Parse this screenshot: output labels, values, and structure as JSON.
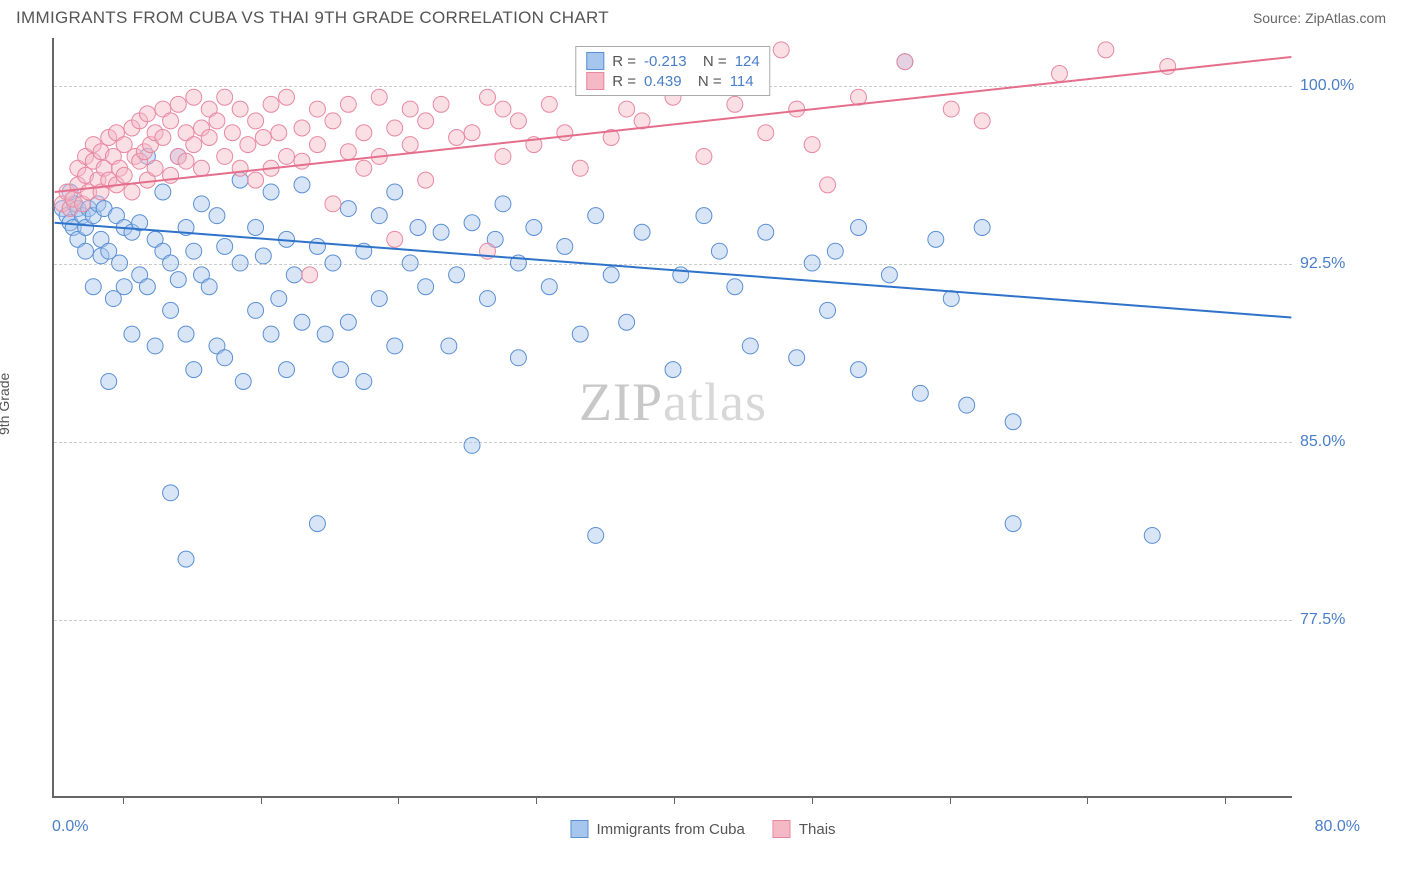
{
  "header": {
    "title": "IMMIGRANTS FROM CUBA VS THAI 9TH GRADE CORRELATION CHART",
    "source": "Source: ZipAtlas.com"
  },
  "chart": {
    "type": "scatter",
    "ylabel": "9th Grade",
    "xlim": [
      0,
      80
    ],
    "ylim": [
      70,
      102
    ],
    "x_axis_min_label": "0.0%",
    "x_axis_max_label": "80.0%",
    "y_ticks": [
      {
        "value": 100.0,
        "label": "100.0%"
      },
      {
        "value": 92.5,
        "label": "92.5%"
      },
      {
        "value": 85.0,
        "label": "85.0%"
      },
      {
        "value": 77.5,
        "label": "77.5%"
      }
    ],
    "x_ticks_count": 9,
    "background_color": "#ffffff",
    "grid_color": "#cccccc",
    "axis_color": "#666666",
    "tick_label_color": "#4a7ec9",
    "marker_radius": 8,
    "marker_opacity": 0.45,
    "line_width": 2,
    "series": [
      {
        "name": "Immigrants from Cuba",
        "fill_color": "#a6c6ed",
        "stroke_color": "#5b8fd4",
        "line_color": "#2e72c9",
        "R": "-0.213",
        "N": "124",
        "trend": {
          "x1": 0,
          "y1": 94.2,
          "x2": 80,
          "y2": 90.2
        },
        "points": [
          [
            0.5,
            94.8
          ],
          [
            0.8,
            94.5
          ],
          [
            1.0,
            94.2
          ],
          [
            1.0,
            95.5
          ],
          [
            1.2,
            94.0
          ],
          [
            1.3,
            95.0
          ],
          [
            1.5,
            94.8
          ],
          [
            1.5,
            93.5
          ],
          [
            1.8,
            94.5
          ],
          [
            2.0,
            94.0
          ],
          [
            2.0,
            93.0
          ],
          [
            2.2,
            94.8
          ],
          [
            2.5,
            91.5
          ],
          [
            2.5,
            94.5
          ],
          [
            2.8,
            95.0
          ],
          [
            3.0,
            93.5
          ],
          [
            3.0,
            92.8
          ],
          [
            3.2,
            94.8
          ],
          [
            3.5,
            93.0
          ],
          [
            3.8,
            91.0
          ],
          [
            4.0,
            94.5
          ],
          [
            3.5,
            87.5
          ],
          [
            4.2,
            92.5
          ],
          [
            4.5,
            94.0
          ],
          [
            4.5,
            91.5
          ],
          [
            5.0,
            93.8
          ],
          [
            5.0,
            89.5
          ],
          [
            5.5,
            94.2
          ],
          [
            5.5,
            92.0
          ],
          [
            6.0,
            97.0
          ],
          [
            6.0,
            91.5
          ],
          [
            6.5,
            93.5
          ],
          [
            6.5,
            89.0
          ],
          [
            7.0,
            93.0
          ],
          [
            7.0,
            95.5
          ],
          [
            7.5,
            92.5
          ],
          [
            7.5,
            90.5
          ],
          [
            8.0,
            91.8
          ],
          [
            8.0,
            97.0
          ],
          [
            8.5,
            94.0
          ],
          [
            8.5,
            89.5
          ],
          [
            9.0,
            93.0
          ],
          [
            9.0,
            88.0
          ],
          [
            9.5,
            92.0
          ],
          [
            9.5,
            95.0
          ],
          [
            10.0,
            91.5
          ],
          [
            7.5,
            82.8
          ],
          [
            10.5,
            94.5
          ],
          [
            10.5,
            89.0
          ],
          [
            11.0,
            93.2
          ],
          [
            11.0,
            88.5
          ],
          [
            12.0,
            92.5
          ],
          [
            12.0,
            96.0
          ],
          [
            8.5,
            80.0
          ],
          [
            12.2,
            87.5
          ],
          [
            13.0,
            94.0
          ],
          [
            13.0,
            90.5
          ],
          [
            13.5,
            92.8
          ],
          [
            14.0,
            89.5
          ],
          [
            14.0,
            95.5
          ],
          [
            14.5,
            91.0
          ],
          [
            15.0,
            93.5
          ],
          [
            15.0,
            88.0
          ],
          [
            15.5,
            92.0
          ],
          [
            16.0,
            90.0
          ],
          [
            16.0,
            95.8
          ],
          [
            17.0,
            93.2
          ],
          [
            17.0,
            81.5
          ],
          [
            17.5,
            89.5
          ],
          [
            18.0,
            92.5
          ],
          [
            18.5,
            88.0
          ],
          [
            19.0,
            94.8
          ],
          [
            19.0,
            90.0
          ],
          [
            20.0,
            93.0
          ],
          [
            20.0,
            87.5
          ],
          [
            21.0,
            94.5
          ],
          [
            21.0,
            91.0
          ],
          [
            22.0,
            89.0
          ],
          [
            22.0,
            95.5
          ],
          [
            23.0,
            92.5
          ],
          [
            23.5,
            94.0
          ],
          [
            24.0,
            91.5
          ],
          [
            25.0,
            93.8
          ],
          [
            25.5,
            89.0
          ],
          [
            26.0,
            92.0
          ],
          [
            27.0,
            94.2
          ],
          [
            27.0,
            84.8
          ],
          [
            28.0,
            91.0
          ],
          [
            28.5,
            93.5
          ],
          [
            29.0,
            95.0
          ],
          [
            30.0,
            92.5
          ],
          [
            30.0,
            88.5
          ],
          [
            31.0,
            94.0
          ],
          [
            32.0,
            91.5
          ],
          [
            33.0,
            93.2
          ],
          [
            34.0,
            89.5
          ],
          [
            35.0,
            81.0
          ],
          [
            35.0,
            94.5
          ],
          [
            36.0,
            92.0
          ],
          [
            37.0,
            90.0
          ],
          [
            38.0,
            93.8
          ],
          [
            40.0,
            88.0
          ],
          [
            40.5,
            92.0
          ],
          [
            42.0,
            94.5
          ],
          [
            43.0,
            93.0
          ],
          [
            44.0,
            91.5
          ],
          [
            45.0,
            89.0
          ],
          [
            46.0,
            93.8
          ],
          [
            48.0,
            88.5
          ],
          [
            49.0,
            92.5
          ],
          [
            50.0,
            90.5
          ],
          [
            50.5,
            93.0
          ],
          [
            52.0,
            88.0
          ],
          [
            52.0,
            94.0
          ],
          [
            54.0,
            92.0
          ],
          [
            55.0,
            101.0
          ],
          [
            56.0,
            87.0
          ],
          [
            57.0,
            93.5
          ],
          [
            58.0,
            91.0
          ],
          [
            59.0,
            86.5
          ],
          [
            60.0,
            94.0
          ],
          [
            62.0,
            85.8
          ],
          [
            62.0,
            81.5
          ],
          [
            71.0,
            81.0
          ]
        ]
      },
      {
        "name": "Thais",
        "fill_color": "#f5b8c5",
        "stroke_color": "#e888a0",
        "line_color": "#e56e8c",
        "R": "0.439",
        "N": "114",
        "trend": {
          "x1": 0,
          "y1": 95.5,
          "x2": 80,
          "y2": 101.2
        },
        "points": [
          [
            0.5,
            95.0
          ],
          [
            0.8,
            95.5
          ],
          [
            1.0,
            94.8
          ],
          [
            1.2,
            95.2
          ],
          [
            1.5,
            95.8
          ],
          [
            1.5,
            96.5
          ],
          [
            1.8,
            95.0
          ],
          [
            2.0,
            96.2
          ],
          [
            2.0,
            97.0
          ],
          [
            2.2,
            95.5
          ],
          [
            2.5,
            96.8
          ],
          [
            2.5,
            97.5
          ],
          [
            2.8,
            96.0
          ],
          [
            3.0,
            95.5
          ],
          [
            3.0,
            97.2
          ],
          [
            3.2,
            96.5
          ],
          [
            3.5,
            97.8
          ],
          [
            3.5,
            96.0
          ],
          [
            3.8,
            97.0
          ],
          [
            4.0,
            95.8
          ],
          [
            4.0,
            98.0
          ],
          [
            4.2,
            96.5
          ],
          [
            4.5,
            97.5
          ],
          [
            4.5,
            96.2
          ],
          [
            5.0,
            98.2
          ],
          [
            5.0,
            95.5
          ],
          [
            5.2,
            97.0
          ],
          [
            5.5,
            96.8
          ],
          [
            5.5,
            98.5
          ],
          [
            5.8,
            97.2
          ],
          [
            6.0,
            96.0
          ],
          [
            6.0,
            98.8
          ],
          [
            6.2,
            97.5
          ],
          [
            6.5,
            96.5
          ],
          [
            6.5,
            98.0
          ],
          [
            7.0,
            97.8
          ],
          [
            7.0,
            99.0
          ],
          [
            7.5,
            96.2
          ],
          [
            7.5,
            98.5
          ],
          [
            8.0,
            97.0
          ],
          [
            8.0,
            99.2
          ],
          [
            8.5,
            98.0
          ],
          [
            8.5,
            96.8
          ],
          [
            9.0,
            99.5
          ],
          [
            9.0,
            97.5
          ],
          [
            9.5,
            98.2
          ],
          [
            9.5,
            96.5
          ],
          [
            10.0,
            99.0
          ],
          [
            10.0,
            97.8
          ],
          [
            10.5,
            98.5
          ],
          [
            11.0,
            97.0
          ],
          [
            11.0,
            99.5
          ],
          [
            11.5,
            98.0
          ],
          [
            12.0,
            96.5
          ],
          [
            12.0,
            99.0
          ],
          [
            12.5,
            97.5
          ],
          [
            13.0,
            98.5
          ],
          [
            13.0,
            96.0
          ],
          [
            13.5,
            97.8
          ],
          [
            14.0,
            99.2
          ],
          [
            14.0,
            96.5
          ],
          [
            14.5,
            98.0
          ],
          [
            15.0,
            97.0
          ],
          [
            15.0,
            99.5
          ],
          [
            16.0,
            98.2
          ],
          [
            16.0,
            96.8
          ],
          [
            17.0,
            97.5
          ],
          [
            17.0,
            99.0
          ],
          [
            16.5,
            92.0
          ],
          [
            18.0,
            98.5
          ],
          [
            18.0,
            95.0
          ],
          [
            19.0,
            97.2
          ],
          [
            19.0,
            99.2
          ],
          [
            20.0,
            98.0
          ],
          [
            20.0,
            96.5
          ],
          [
            21.0,
            99.5
          ],
          [
            21.0,
            97.0
          ],
          [
            22.0,
            98.2
          ],
          [
            22.0,
            93.5
          ],
          [
            23.0,
            99.0
          ],
          [
            23.0,
            97.5
          ],
          [
            24.0,
            98.5
          ],
          [
            24.0,
            96.0
          ],
          [
            25.0,
            99.2
          ],
          [
            26.0,
            97.8
          ],
          [
            27.0,
            98.0
          ],
          [
            28.0,
            99.5
          ],
          [
            28.0,
            93.0
          ],
          [
            29.0,
            97.0
          ],
          [
            29.0,
            99.0
          ],
          [
            30.0,
            98.5
          ],
          [
            31.0,
            97.5
          ],
          [
            32.0,
            99.2
          ],
          [
            33.0,
            98.0
          ],
          [
            34.0,
            96.5
          ],
          [
            35.0,
            101.0
          ],
          [
            36.0,
            97.8
          ],
          [
            37.0,
            99.0
          ],
          [
            38.0,
            98.5
          ],
          [
            40.0,
            99.5
          ],
          [
            42.0,
            97.0
          ],
          [
            44.0,
            99.2
          ],
          [
            46.0,
            98.0
          ],
          [
            47.0,
            101.5
          ],
          [
            48.0,
            99.0
          ],
          [
            49.0,
            97.5
          ],
          [
            50.0,
            95.8
          ],
          [
            52.0,
            99.5
          ],
          [
            55.0,
            101.0
          ],
          [
            58.0,
            99.0
          ],
          [
            60.0,
            98.5
          ],
          [
            65.0,
            100.5
          ],
          [
            68.0,
            101.5
          ],
          [
            72.0,
            100.8
          ]
        ]
      }
    ],
    "legend_bottom": [
      {
        "label": "Immigrants from Cuba",
        "fill": "#a6c6ed",
        "stroke": "#5b8fd4"
      },
      {
        "label": "Thais",
        "fill": "#f5b8c5",
        "stroke": "#e888a0"
      }
    ],
    "watermark": {
      "prefix": "ZIP",
      "suffix": "atlas"
    }
  }
}
